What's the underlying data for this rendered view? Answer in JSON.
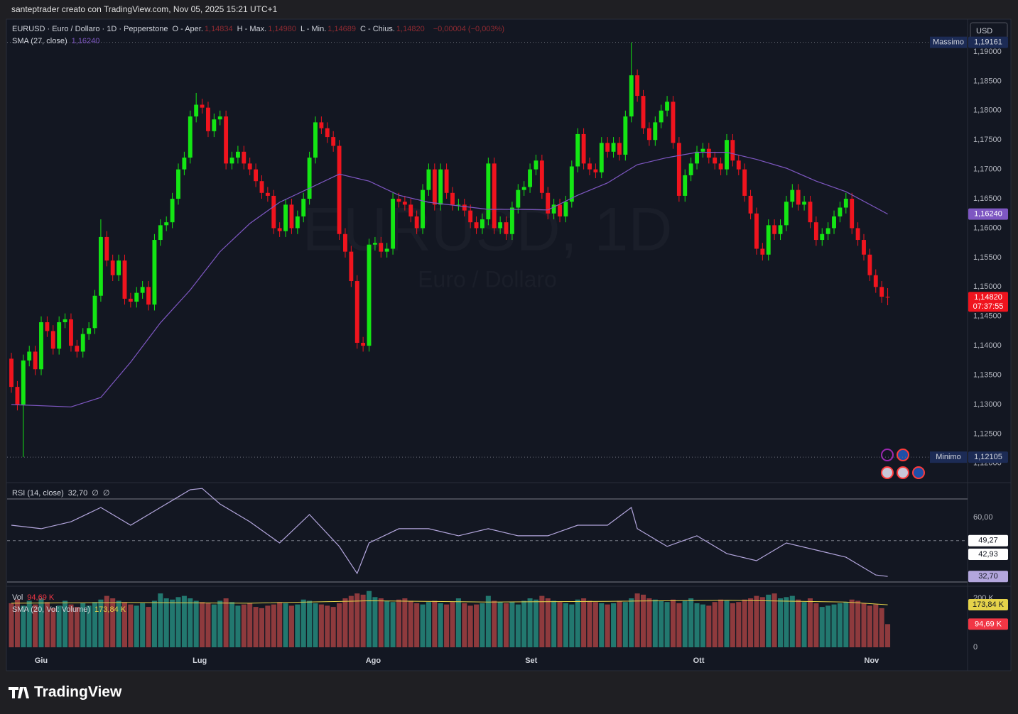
{
  "credit": "santeptrader creato con TradingView.com, Nov 05, 2025 15:21 UTC+1",
  "logo": "TradingView",
  "currency": "USD",
  "watermark": {
    "symbol": "EURUSD, 1D",
    "name": "Euro / Dollaro"
  },
  "chart_data": [
    {
      "type": "candlestick",
      "title": "EURUSD · Euro / Dollaro · 1D · Pepperstone",
      "ohlc_legend": [
        {
          "name": "O - Aper.",
          "value": 1.14834,
          "label": "1,14834"
        },
        {
          "name": "H - Max.",
          "value": 1.1498,
          "label": "1,14980"
        },
        {
          "name": "L - Min.",
          "value": 1.14689,
          "label": "1,14689"
        },
        {
          "name": "C - Chius.",
          "value": 1.1482,
          "label": "1,14820"
        }
      ],
      "change": {
        "value": -4e-05,
        "label": "−0,00004 (−0,003%)"
      },
      "up_color": "#14e614",
      "down_color": "#f0141e",
      "open": [
        1.1378,
        1.133,
        1.13,
        1.1375,
        1.139,
        1.136,
        1.144,
        1.1425,
        1.1395,
        1.144,
        1.1445,
        1.14,
        1.139,
        1.142,
        1.143,
        1.1485,
        1.1585,
        1.1545,
        1.152,
        1.1545,
        1.148,
        1.1475,
        1.149,
        1.15,
        1.147,
        1.158,
        1.1605,
        1.161,
        1.165,
        1.17,
        1.172,
        1.179,
        1.181,
        1.1805,
        1.1765,
        1.1785,
        1.179,
        1.171,
        1.172,
        1.173,
        1.171,
        1.17,
        1.168,
        1.166,
        1.1655,
        1.16,
        1.1595,
        1.164,
        1.16,
        1.162,
        1.165,
        1.172,
        1.178,
        1.177,
        1.1755,
        1.174,
        1.159,
        1.156,
        1.151,
        1.1405,
        1.14,
        1.1572,
        1.1575,
        1.156,
        1.1565,
        1.165,
        1.1645,
        1.164,
        1.162,
        1.16,
        1.1665,
        1.17,
        1.164,
        1.17,
        1.166,
        1.164,
        1.164,
        1.163,
        1.161,
        1.16,
        1.1615,
        1.171,
        1.16,
        1.161,
        1.159,
        1.1635,
        1.1665,
        1.167,
        1.17,
        1.1715,
        1.166,
        1.1625,
        1.164,
        1.162,
        1.1645,
        1.1705,
        1.176,
        1.171,
        1.17,
        1.1695,
        1.1745,
        1.173,
        1.1745,
        1.1725,
        1.179,
        1.186,
        1.1825,
        1.177,
        1.175,
        1.178,
        1.18,
        1.1815,
        1.1745,
        1.1655,
        1.169,
        1.171,
        1.173,
        1.1735,
        1.172,
        1.171,
        1.17,
        1.175,
        1.1715,
        1.17,
        1.1655,
        1.1625,
        1.1565,
        1.1555,
        1.1605,
        1.159,
        1.1605,
        1.1645,
        1.1665,
        1.164,
        1.1645,
        1.161,
        1.158,
        1.159,
        1.16,
        1.162,
        1.1635,
        1.165,
        1.16,
        1.158,
        1.1555,
        1.152,
        1.15,
        1.14834
      ],
      "high": [
        1.1388,
        1.134,
        1.1385,
        1.14,
        1.14,
        1.145,
        1.145,
        1.1435,
        1.145,
        1.1455,
        1.1455,
        1.141,
        1.143,
        1.144,
        1.1495,
        1.1615,
        1.1595,
        1.1555,
        1.1555,
        1.1555,
        1.149,
        1.15,
        1.151,
        1.151,
        1.159,
        1.1615,
        1.162,
        1.166,
        1.171,
        1.173,
        1.18,
        1.183,
        1.182,
        1.1815,
        1.1795,
        1.18,
        1.18,
        1.173,
        1.174,
        1.174,
        1.172,
        1.171,
        1.169,
        1.167,
        1.1665,
        1.161,
        1.165,
        1.165,
        1.163,
        1.166,
        1.173,
        1.179,
        1.179,
        1.178,
        1.1765,
        1.175,
        1.16,
        1.157,
        1.152,
        1.1415,
        1.1582,
        1.1585,
        1.1585,
        1.1575,
        1.166,
        1.166,
        1.1655,
        1.165,
        1.163,
        1.1675,
        1.171,
        1.171,
        1.171,
        1.171,
        1.167,
        1.165,
        1.165,
        1.164,
        1.162,
        1.1625,
        1.172,
        1.172,
        1.162,
        1.162,
        1.1645,
        1.1675,
        1.168,
        1.171,
        1.1725,
        1.1725,
        1.167,
        1.165,
        1.165,
        1.1655,
        1.1715,
        1.177,
        1.177,
        1.172,
        1.171,
        1.1755,
        1.1755,
        1.1755,
        1.1755,
        1.18,
        1.19161,
        1.187,
        1.1835,
        1.178,
        1.179,
        1.181,
        1.1825,
        1.1825,
        1.1755,
        1.17,
        1.172,
        1.174,
        1.1745,
        1.1745,
        1.173,
        1.172,
        1.176,
        1.176,
        1.1725,
        1.171,
        1.1665,
        1.1635,
        1.1575,
        1.1615,
        1.1615,
        1.1615,
        1.1655,
        1.1675,
        1.1675,
        1.1655,
        1.1655,
        1.162,
        1.16,
        1.161,
        1.163,
        1.1645,
        1.166,
        1.166,
        1.161,
        1.159,
        1.1565,
        1.153,
        1.151,
        1.1498
      ],
      "low": [
        1.132,
        1.129,
        1.12105,
        1.1365,
        1.135,
        1.135,
        1.1415,
        1.1385,
        1.1385,
        1.143,
        1.139,
        1.138,
        1.138,
        1.141,
        1.142,
        1.1475,
        1.1535,
        1.151,
        1.151,
        1.147,
        1.1465,
        1.1465,
        1.148,
        1.146,
        1.146,
        1.157,
        1.1595,
        1.16,
        1.164,
        1.169,
        1.171,
        1.178,
        1.1795,
        1.1755,
        1.1755,
        1.1775,
        1.17,
        1.17,
        1.171,
        1.17,
        1.169,
        1.167,
        1.165,
        1.1645,
        1.159,
        1.1585,
        1.1585,
        1.159,
        1.159,
        1.161,
        1.164,
        1.171,
        1.176,
        1.1745,
        1.173,
        1.158,
        1.155,
        1.15,
        1.1395,
        1.139,
        1.139,
        1.1562,
        1.155,
        1.155,
        1.1555,
        1.1635,
        1.163,
        1.161,
        1.159,
        1.159,
        1.1655,
        1.163,
        1.163,
        1.165,
        1.163,
        1.163,
        1.162,
        1.16,
        1.159,
        1.159,
        1.1605,
        1.159,
        1.159,
        1.158,
        1.158,
        1.1625,
        1.1655,
        1.166,
        1.169,
        1.165,
        1.1615,
        1.1615,
        1.161,
        1.161,
        1.1635,
        1.1695,
        1.17,
        1.169,
        1.1685,
        1.1685,
        1.172,
        1.172,
        1.1715,
        1.1715,
        1.178,
        1.1815,
        1.176,
        1.174,
        1.174,
        1.177,
        1.179,
        1.1735,
        1.1645,
        1.1645,
        1.168,
        1.17,
        1.172,
        1.171,
        1.17,
        1.169,
        1.169,
        1.1705,
        1.169,
        1.1645,
        1.1615,
        1.1555,
        1.1545,
        1.1545,
        1.158,
        1.158,
        1.1595,
        1.1635,
        1.163,
        1.163,
        1.16,
        1.157,
        1.157,
        1.158,
        1.159,
        1.161,
        1.1625,
        1.159,
        1.157,
        1.1545,
        1.151,
        1.149,
        1.1473,
        1.14689
      ],
      "close": [
        1.133,
        1.13,
        1.1375,
        1.139,
        1.136,
        1.144,
        1.1425,
        1.1395,
        1.144,
        1.1445,
        1.14,
        1.139,
        1.142,
        1.143,
        1.1485,
        1.1585,
        1.1545,
        1.152,
        1.1545,
        1.148,
        1.1475,
        1.149,
        1.15,
        1.147,
        1.158,
        1.1605,
        1.161,
        1.165,
        1.17,
        1.172,
        1.179,
        1.181,
        1.1805,
        1.1765,
        1.1785,
        1.179,
        1.171,
        1.172,
        1.173,
        1.171,
        1.17,
        1.168,
        1.166,
        1.1655,
        1.16,
        1.1595,
        1.164,
        1.16,
        1.162,
        1.165,
        1.172,
        1.178,
        1.177,
        1.1755,
        1.174,
        1.159,
        1.156,
        1.151,
        1.1405,
        1.14,
        1.1572,
        1.1575,
        1.156,
        1.1565,
        1.165,
        1.1645,
        1.164,
        1.162,
        1.16,
        1.1665,
        1.17,
        1.164,
        1.17,
        1.166,
        1.164,
        1.164,
        1.163,
        1.161,
        1.16,
        1.1615,
        1.171,
        1.16,
        1.161,
        1.159,
        1.1635,
        1.1665,
        1.167,
        1.17,
        1.1715,
        1.166,
        1.1625,
        1.164,
        1.162,
        1.1645,
        1.1705,
        1.176,
        1.171,
        1.17,
        1.1695,
        1.1745,
        1.173,
        1.1745,
        1.1725,
        1.179,
        1.186,
        1.1825,
        1.177,
        1.175,
        1.178,
        1.18,
        1.1815,
        1.1745,
        1.1655,
        1.169,
        1.171,
        1.173,
        1.1735,
        1.172,
        1.171,
        1.17,
        1.175,
        1.1715,
        1.17,
        1.1655,
        1.1625,
        1.1565,
        1.1555,
        1.1605,
        1.159,
        1.1605,
        1.1645,
        1.1665,
        1.164,
        1.1645,
        1.161,
        1.158,
        1.159,
        1.16,
        1.162,
        1.1635,
        1.165,
        1.16,
        1.158,
        1.1555,
        1.152,
        1.15,
        1.14834,
        1.1482
      ],
      "xlim": [
        -0.72,
        160.4
      ],
      "xticks": [
        {
          "value": 5,
          "label": "Giu"
        },
        {
          "value": 31.6,
          "label": "Lug"
        },
        {
          "value": 60.7,
          "label": "Ago"
        },
        {
          "value": 87.2,
          "label": "Set"
        },
        {
          "value": 115.3,
          "label": "Ott"
        },
        {
          "value": 144.3,
          "label": "Nov"
        }
      ],
      "ylim": [
        1.11696,
        1.19543
      ],
      "yticks": [
        {
          "value": 1.12,
          "label": "1,12000"
        },
        {
          "value": 1.125,
          "label": "1,12500"
        },
        {
          "value": 1.13,
          "label": "1,13000"
        },
        {
          "value": 1.135,
          "label": "1,13500"
        },
        {
          "value": 1.14,
          "label": "1,14000"
        },
        {
          "value": 1.145,
          "label": "1,14500"
        },
        {
          "value": 1.15,
          "label": "1,15000"
        },
        {
          "value": 1.155,
          "label": "1,15500"
        },
        {
          "value": 1.16,
          "label": "1,16000"
        },
        {
          "value": 1.165,
          "label": "1,16500"
        },
        {
          "value": 1.17,
          "label": "1,17000"
        },
        {
          "value": 1.175,
          "label": "1,17500"
        },
        {
          "value": 1.18,
          "label": "1,18000"
        },
        {
          "value": 1.185,
          "label": "1,18500"
        },
        {
          "value": 1.19,
          "label": "1,19000"
        }
      ],
      "sma": {
        "name": "SMA (27, close)",
        "color": "#7e57c2",
        "x": [
          0,
          10,
          15,
          20,
          25,
          30,
          35,
          40,
          45,
          50,
          55,
          60,
          65,
          70,
          75,
          80,
          85,
          90,
          95,
          100,
          105,
          110,
          115,
          120,
          125,
          130,
          135,
          140,
          147
        ],
        "values": [
          1.13,
          1.1296,
          1.1312,
          1.1372,
          1.1439,
          1.1495,
          1.156,
          1.1608,
          1.1644,
          1.1668,
          1.1692,
          1.168,
          1.1656,
          1.1644,
          1.1638,
          1.1632,
          1.1632,
          1.1631,
          1.1656,
          1.1677,
          1.1708,
          1.172,
          1.1729,
          1.1729,
          1.1717,
          1.1702,
          1.168,
          1.1662,
          1.1624
        ],
        "last": {
          "value": 1.1624,
          "label": "1,16240"
        }
      },
      "high_mark": {
        "name": "Massimo",
        "value": 1.19161,
        "label": "1,19161"
      },
      "low_mark": {
        "name": "Minimo",
        "value": 1.12105,
        "label": "1,12105"
      },
      "last_price": {
        "value": 1.1482,
        "label": "1,14820",
        "countdown": "07:37:55"
      }
    },
    {
      "type": "line",
      "title": "RSI (14, close)",
      "legend_value": {
        "value": 32.7,
        "label": "32,70"
      },
      "legend_extras": [
        "∅",
        "∅"
      ],
      "color": "#b3a6dd",
      "x": [
        0,
        5,
        10,
        15,
        20,
        25,
        30,
        32,
        35,
        40,
        45,
        50,
        55,
        58,
        60,
        65,
        70,
        75,
        80,
        85,
        90,
        95,
        100,
        104,
        105,
        110,
        115,
        120,
        125,
        130,
        135,
        140,
        145,
        147
      ],
      "values": [
        56.4,
        54.8,
        58.0,
        64.6,
        56.4,
        64.6,
        72.8,
        73.4,
        66.2,
        58.0,
        48.2,
        61.3,
        46.6,
        34.1,
        48.2,
        54.8,
        54.8,
        51.5,
        54.8,
        51.5,
        51.5,
        56.4,
        56.4,
        64.6,
        54.8,
        46.6,
        51.5,
        43.3,
        40.0,
        48.2,
        44.9,
        41.6,
        33.4,
        32.7
      ],
      "ylim": [
        30.15,
        73.45
      ],
      "yticks": [
        {
          "value": 60,
          "label": "60,00"
        }
      ],
      "levels": [
        {
          "value": 49.27,
          "label": "49,27"
        },
        {
          "value": 42.93,
          "label": "42,93"
        }
      ],
      "last": {
        "value": 32.7,
        "label": "32,70"
      }
    },
    {
      "type": "volume",
      "title": "Vol",
      "up_color": "#22786f",
      "down_color": "#8e3a3d",
      "values": [
        180,
        195,
        170,
        190,
        175,
        200,
        185,
        160,
        170,
        190,
        175,
        165,
        180,
        170,
        185,
        195,
        210,
        200,
        190,
        185,
        175,
        170,
        180,
        165,
        190,
        220,
        200,
        195,
        205,
        210,
        200,
        190,
        185,
        180,
        175,
        190,
        200,
        185,
        170,
        175,
        180,
        165,
        160,
        170,
        175,
        185,
        180,
        170,
        175,
        195,
        190,
        180,
        175,
        170,
        165,
        180,
        200,
        210,
        220,
        215,
        230,
        205,
        200,
        190,
        185,
        195,
        200,
        190,
        180,
        175,
        185,
        190,
        180,
        175,
        185,
        200,
        180,
        170,
        175,
        180,
        210,
        190,
        185,
        180,
        185,
        175,
        190,
        200,
        195,
        210,
        200,
        190,
        185,
        180,
        175,
        195,
        200,
        190,
        185,
        180,
        175,
        180,
        190,
        185,
        200,
        220,
        215,
        200,
        195,
        190,
        185,
        195,
        180,
        190,
        200,
        180,
        175,
        170,
        185,
        195,
        190,
        180,
        185,
        195,
        200,
        210,
        205,
        215,
        220,
        200,
        205,
        210,
        195,
        185,
        200,
        180,
        165,
        170,
        175,
        180,
        185,
        195,
        190,
        180,
        170,
        175,
        160,
        94.69
      ],
      "last": {
        "value": 94.69,
        "label": "94,69 K"
      },
      "sma": {
        "name": "SMA (20, Vol: Volume)",
        "color": "#e5d34a",
        "x": [
          0,
          20,
          40,
          60,
          80,
          100,
          120,
          140,
          147
        ],
        "values": [
          180,
          183,
          180,
          190,
          185,
          188,
          192,
          185,
          173.84
        ],
        "last": {
          "value": 173.84,
          "label": "173,84 K"
        }
      },
      "ylim": [
        0,
        232
      ],
      "yticks": [
        0,
        {
          "value": 200,
          "label": "200 K"
        }
      ]
    }
  ]
}
